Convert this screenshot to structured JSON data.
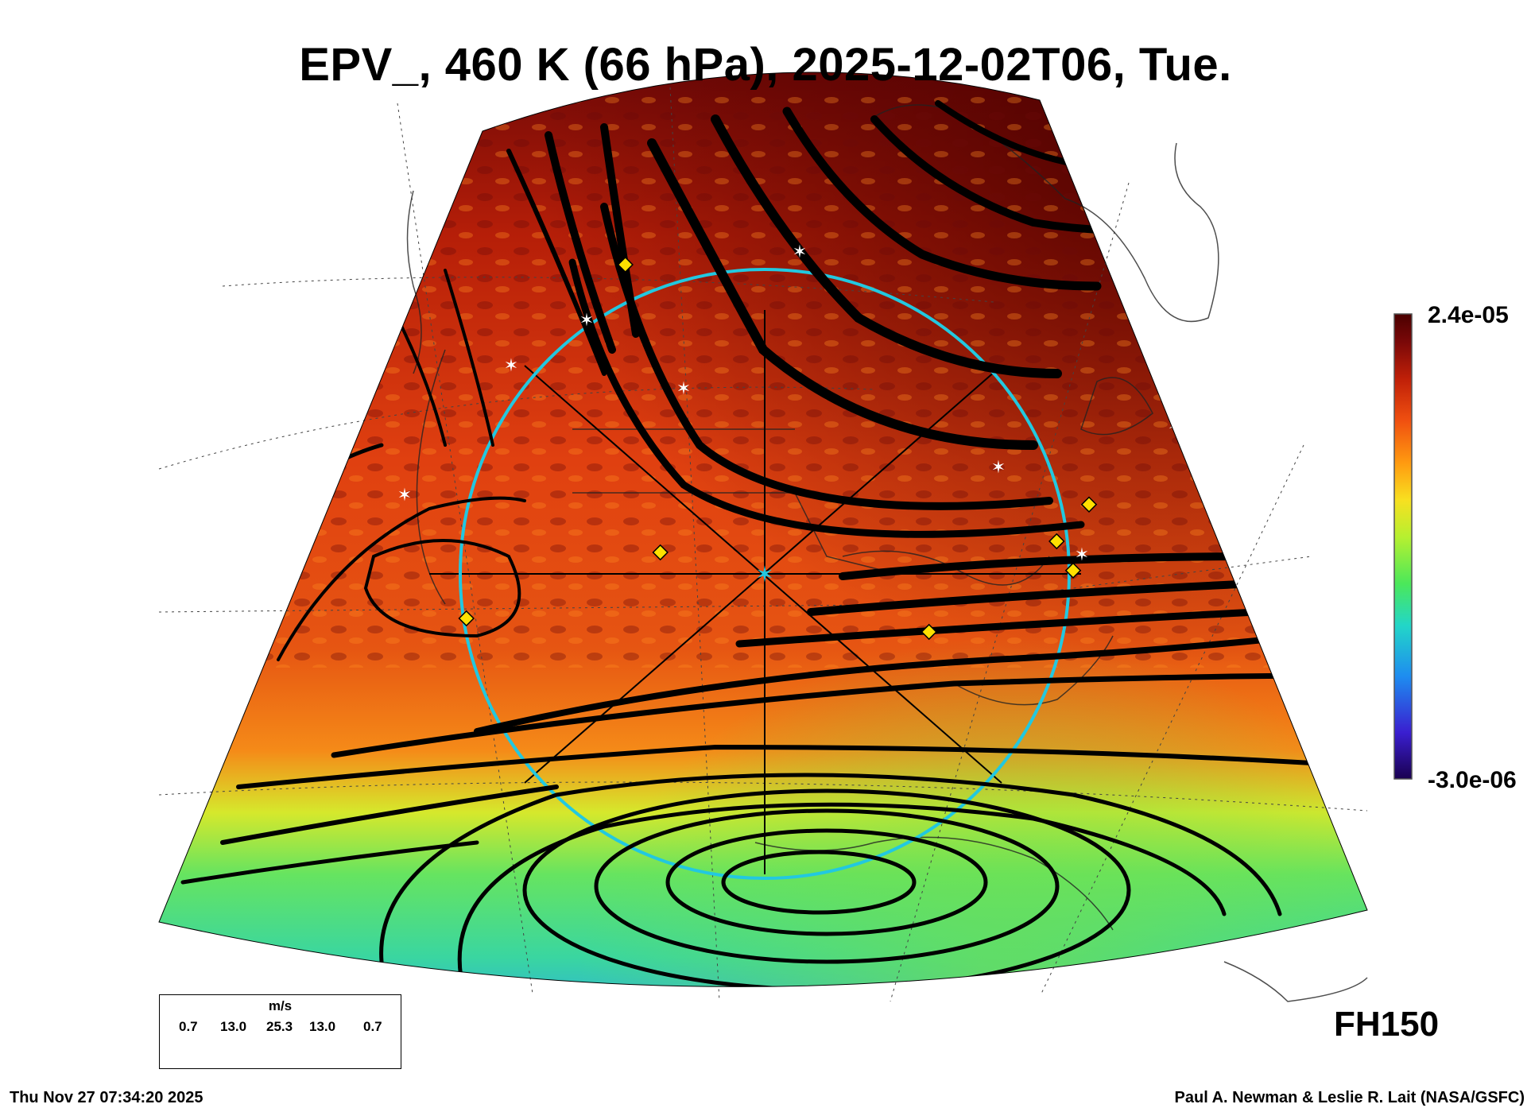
{
  "title": "EPV_, 460 K (66 hPa), 2025-12-02T06, Tue.",
  "colorbar": {
    "max_label": "2.4e-05",
    "min_label": "-3.0e-06",
    "colors": [
      "#1a0050",
      "#3a1fd0",
      "#1e8cf0",
      "#22d6c8",
      "#4be85a",
      "#b6f030",
      "#f8e020",
      "#ff9a10",
      "#f05010",
      "#c02008",
      "#7a0808",
      "#4a0000"
    ]
  },
  "forecast_hour": "FH150",
  "timestamp": "Thu Nov 27 07:34:20 2025",
  "credit": "Paul A. Newman & Leslie R. Lait (NASA/GSFC)",
  "vector_legend": {
    "unit": "m/s",
    "values": [
      "0.7",
      "13.0",
      "25.3",
      "13.0",
      "0.7"
    ]
  },
  "colors": {
    "reference_circle": "#22c8e0",
    "streamline": "#000000",
    "marker_white": "#ffffff",
    "marker_yellow": "#ffe000"
  }
}
